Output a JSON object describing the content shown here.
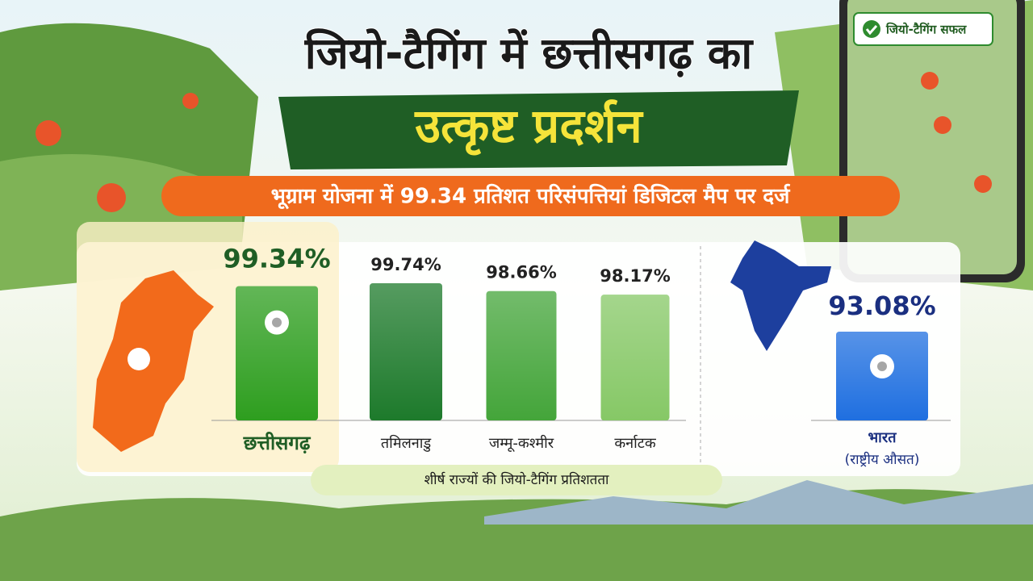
{
  "chart_data": {
    "type": "bar",
    "title": "जियो-टैगिंग में छत्तीसगढ़ का",
    "title_highlight": "उत्कृष्ट प्रदर्शन",
    "subtitle": "भूग्राम योजना में 99.34 प्रतिशत परिसंपत्तियां डिजिटल मैप पर दर्ज",
    "categories": [
      "छत्तीसगढ़",
      "तमिलनाडु",
      "जम्मू-कश्मीर",
      "कर्नाटक"
    ],
    "values": [
      99.34,
      99.74,
      98.66,
      98.17
    ],
    "value_labels": [
      "99.34%",
      "99.74%",
      "98.66%",
      "98.17%"
    ],
    "colors": [
      "#2e9e1f",
      "#1d7a2b",
      "#44a53a",
      "#86c866"
    ],
    "highlight": 0,
    "caption": "शीर्ष राज्यों की जियो-टैगिंग प्रतिशतता",
    "national": {
      "label": "भारत",
      "sublabel": "(राष्ट्रीय औसत)",
      "value": 93.08,
      "value_label": "93.08%",
      "color": "#1f6fe0"
    },
    "phone_badge": "जियो-टैगिंग सफल"
  }
}
